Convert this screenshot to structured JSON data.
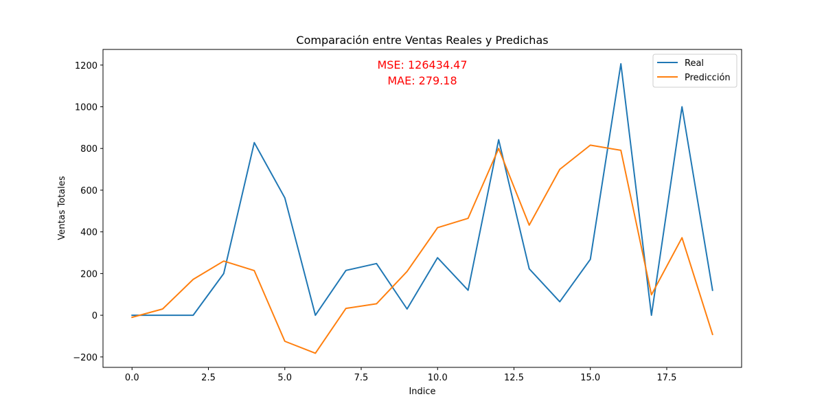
{
  "chart_data": {
    "type": "line",
    "title": "Comparación entre Ventas Reales y Predichas",
    "xlabel": "Indice",
    "ylabel": "Ventas Totales",
    "xlim": [
      -0.95,
      19.95
    ],
    "ylim": [
      -250,
      1275
    ],
    "x_ticks": [
      0.0,
      2.5,
      5.0,
      7.5,
      10.0,
      12.5,
      15.0,
      17.5
    ],
    "x_tick_labels": [
      "0.0",
      "2.5",
      "5.0",
      "7.5",
      "10.0",
      "12.5",
      "15.0",
      "17.5"
    ],
    "y_ticks": [
      -200,
      0,
      200,
      400,
      600,
      800,
      1000,
      1200
    ],
    "y_tick_labels": [
      "−200",
      "0",
      "200",
      "400",
      "600",
      "800",
      "1000",
      "1200"
    ],
    "grid": false,
    "legend_position": "top-right",
    "annotations": [
      "MSE: 126434.47",
      "MAE: 279.18"
    ],
    "annotation_color": "#ff0000",
    "x": [
      0,
      1,
      2,
      3,
      4,
      5,
      6,
      7,
      8,
      9,
      10,
      11,
      12,
      13,
      14,
      15,
      16,
      17,
      18,
      19
    ],
    "series": [
      {
        "name": "Real",
        "color": "#1f77b4",
        "values": [
          0,
          0,
          0,
          200,
          828,
          563,
          0,
          215,
          248,
          30,
          276,
          120,
          842,
          223,
          65,
          268,
          1206,
          0,
          1000,
          120
        ]
      },
      {
        "name": "Predicción",
        "color": "#ff7f0e",
        "values": [
          -10,
          30,
          172,
          260,
          214,
          -125,
          -182,
          33,
          55,
          210,
          420,
          465,
          800,
          432,
          700,
          816,
          791,
          98,
          372,
          -92
        ]
      }
    ]
  }
}
